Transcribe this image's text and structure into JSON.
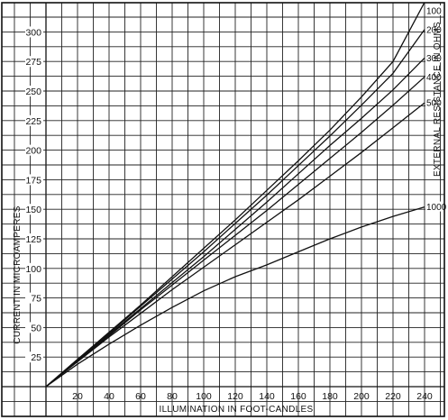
{
  "chart_data": {
    "type": "line",
    "title": "",
    "xlabel": "ILLUMINATION IN FOOT-CANDLES",
    "ylabel": "CURRENT IN MICROAMPERES",
    "right_label": "EXTERNAL RESISTANCE IN OHMS",
    "xlim": [
      0,
      260
    ],
    "ylim": [
      0,
      325
    ],
    "x_ticks": [
      20,
      40,
      60,
      80,
      100,
      120,
      140,
      160,
      180,
      200,
      220,
      240
    ],
    "y_ticks": [
      25,
      50,
      75,
      100,
      125,
      150,
      175,
      200,
      225,
      250,
      275,
      300
    ],
    "grid": true,
    "series": [
      {
        "name": "100",
        "x": [
          0,
          20,
          40,
          60,
          80,
          100,
          120,
          140,
          160,
          180,
          200,
          220,
          240
        ],
        "y": [
          0,
          23,
          46,
          69,
          93,
          117,
          141,
          166,
          191,
          217,
          245,
          275,
          325
        ]
      },
      {
        "name": "200",
        "x": [
          0,
          20,
          40,
          60,
          80,
          100,
          120,
          140,
          160,
          180,
          200,
          220,
          240
        ],
        "y": [
          0,
          23,
          45,
          68,
          91,
          114,
          138,
          162,
          187,
          212,
          238,
          265,
          302
        ]
      },
      {
        "name": "300",
        "x": [
          0,
          20,
          40,
          60,
          80,
          100,
          120,
          140,
          160,
          180,
          200,
          220,
          240
        ],
        "y": [
          0,
          22,
          44,
          66,
          88,
          110,
          133,
          156,
          180,
          204,
          227,
          251,
          278
        ]
      },
      {
        "name": "400",
        "x": [
          0,
          20,
          40,
          60,
          80,
          100,
          120,
          140,
          160,
          180,
          200,
          220,
          240
        ],
        "y": [
          0,
          22,
          43,
          65,
          86,
          107,
          128,
          149,
          171,
          193,
          215,
          238,
          262
        ]
      },
      {
        "name": "500",
        "x": [
          0,
          20,
          40,
          60,
          80,
          100,
          120,
          140,
          160,
          180,
          200,
          220,
          240
        ],
        "y": [
          0,
          21,
          42,
          62,
          82,
          101,
          120,
          139,
          158,
          178,
          198,
          219,
          240
        ]
      },
      {
        "name": "1000",
        "x": [
          0,
          20,
          40,
          60,
          80,
          100,
          120,
          140,
          160,
          180,
          200,
          220,
          240
        ],
        "y": [
          0,
          19,
          36,
          52,
          67,
          81,
          93,
          103,
          114,
          125,
          135,
          144,
          152
        ]
      }
    ]
  }
}
